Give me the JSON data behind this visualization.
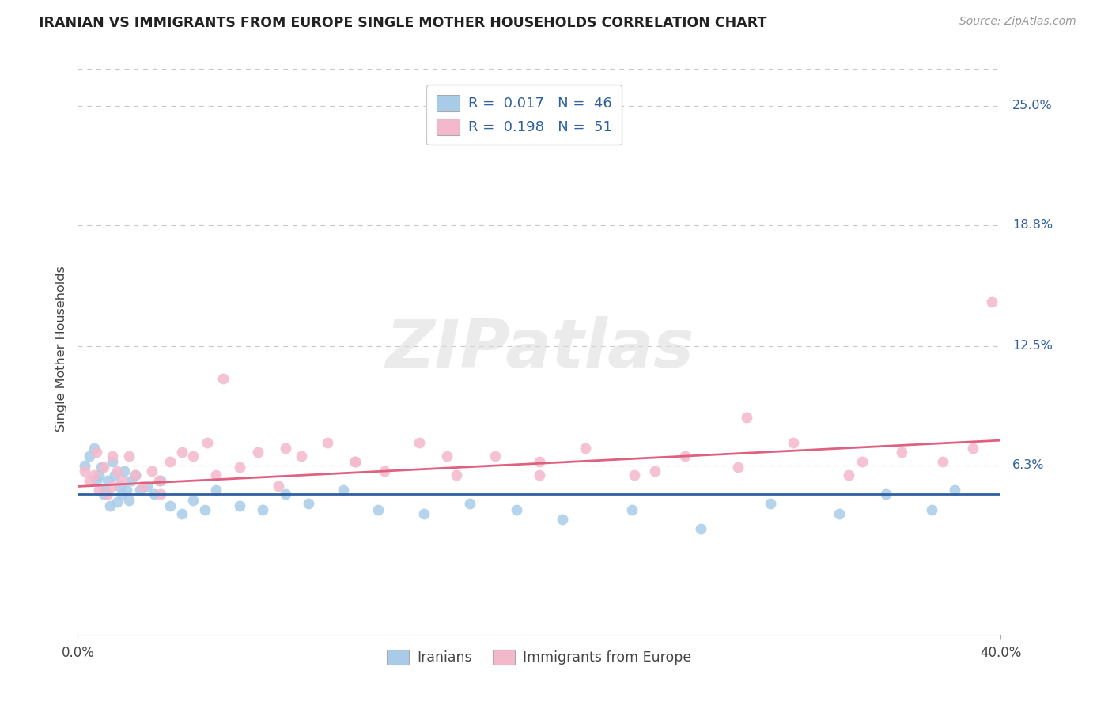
{
  "title": "IRANIAN VS IMMIGRANTS FROM EUROPE SINGLE MOTHER HOUSEHOLDS CORRELATION CHART",
  "source": "Source: ZipAtlas.com",
  "ylabel": "Single Mother Households",
  "ytick_labels": [
    "6.3%",
    "12.5%",
    "18.8%",
    "25.0%"
  ],
  "ytick_values": [
    0.063,
    0.125,
    0.188,
    0.25
  ],
  "xmin": 0.0,
  "xmax": 0.4,
  "ymin": -0.025,
  "ymax": 0.272,
  "series1_color": "#a8cce8",
  "series2_color": "#f4b8cc",
  "trendline1_color": "#3060a0",
  "trendline2_color": "#e06080",
  "legend_text_color": "#3060a0",
  "background_color": "#ffffff",
  "grid_color": "#c8c8c8",
  "watermark": "ZIPatlas",
  "iranians_x": [
    0.003,
    0.005,
    0.007,
    0.008,
    0.009,
    0.01,
    0.011,
    0.012,
    0.013,
    0.014,
    0.015,
    0.016,
    0.017,
    0.018,
    0.019,
    0.02,
    0.021,
    0.022,
    0.023,
    0.025,
    0.027,
    0.03,
    0.033,
    0.036,
    0.04,
    0.045,
    0.05,
    0.055,
    0.06,
    0.07,
    0.08,
    0.09,
    0.1,
    0.115,
    0.13,
    0.15,
    0.17,
    0.19,
    0.21,
    0.24,
    0.27,
    0.3,
    0.33,
    0.35,
    0.37,
    0.38
  ],
  "iranians_y": [
    0.063,
    0.068,
    0.072,
    0.055,
    0.058,
    0.062,
    0.048,
    0.05,
    0.055,
    0.042,
    0.065,
    0.058,
    0.044,
    0.052,
    0.048,
    0.06,
    0.05,
    0.045,
    0.055,
    0.058,
    0.05,
    0.052,
    0.048,
    0.055,
    0.042,
    0.038,
    0.045,
    0.04,
    0.05,
    0.042,
    0.04,
    0.048,
    0.043,
    0.05,
    0.04,
    0.038,
    0.043,
    0.04,
    0.035,
    0.04,
    0.03,
    0.043,
    0.038,
    0.048,
    0.04,
    0.05
  ],
  "europeans_x": [
    0.003,
    0.005,
    0.007,
    0.009,
    0.011,
    0.013,
    0.015,
    0.017,
    0.019,
    0.022,
    0.025,
    0.028,
    0.032,
    0.036,
    0.04,
    0.045,
    0.05,
    0.056,
    0.063,
    0.07,
    0.078,
    0.087,
    0.097,
    0.108,
    0.12,
    0.133,
    0.148,
    0.164,
    0.181,
    0.2,
    0.22,
    0.241,
    0.263,
    0.286,
    0.31,
    0.334,
    0.357,
    0.375,
    0.388,
    0.396,
    0.34,
    0.29,
    0.25,
    0.2,
    0.16,
    0.12,
    0.09,
    0.06,
    0.035,
    0.015,
    0.008
  ],
  "europeans_y": [
    0.06,
    0.055,
    0.058,
    0.05,
    0.062,
    0.048,
    0.052,
    0.06,
    0.055,
    0.068,
    0.058,
    0.052,
    0.06,
    0.048,
    0.065,
    0.07,
    0.068,
    0.075,
    0.108,
    0.062,
    0.07,
    0.052,
    0.068,
    0.075,
    0.065,
    0.06,
    0.075,
    0.058,
    0.068,
    0.065,
    0.072,
    0.058,
    0.068,
    0.062,
    0.075,
    0.058,
    0.07,
    0.065,
    0.072,
    0.148,
    0.065,
    0.088,
    0.06,
    0.058,
    0.068,
    0.065,
    0.072,
    0.058,
    0.055,
    0.068,
    0.07
  ],
  "iran_trendline_y0": 0.048,
  "iran_trendline_y1": 0.048,
  "euro_trendline_y0": 0.052,
  "euro_trendline_y1": 0.076
}
